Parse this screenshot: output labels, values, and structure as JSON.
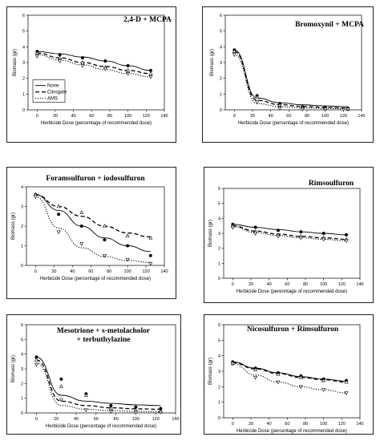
{
  "shared": {
    "xlabel": "Herbicide Dose (percentage of recommended dose)",
    "ylabel": "Biomass (gr)",
    "legend": [
      "None",
      "Citrogate",
      "AMS"
    ]
  },
  "chart_data": [
    {
      "type": "scatter",
      "title": "2,4-D + MCPA",
      "xlabel": "Herbicide Dose (percentage of recommended dose)",
      "ylabel": "Biomass (gr)",
      "xlim": [
        -10,
        140
      ],
      "ylim": [
        0,
        6
      ],
      "xticks": [
        0,
        20,
        40,
        60,
        80,
        100,
        120,
        140
      ],
      "yticks": [
        0,
        1,
        2,
        3,
        4,
        5,
        6
      ],
      "legend": [
        "None",
        "Citrogate",
        "AMS"
      ],
      "series": [
        {
          "name": "None",
          "x": [
            0,
            25,
            50,
            75,
            100,
            125
          ],
          "y": [
            3.7,
            3.5,
            3.3,
            3.1,
            2.8,
            2.5
          ],
          "curve": [
            3.7,
            3.55,
            3.35,
            3.1,
            2.8,
            2.5
          ]
        },
        {
          "name": "Citrogate",
          "x": [
            0,
            25,
            50,
            75,
            100,
            125
          ],
          "y": [
            3.6,
            3.3,
            3.0,
            2.7,
            2.5,
            2.3
          ],
          "curve": [
            3.6,
            3.3,
            3.0,
            2.75,
            2.5,
            2.3
          ]
        },
        {
          "name": "AMS",
          "x": [
            0,
            25,
            50,
            75,
            100,
            125
          ],
          "y": [
            3.4,
            3.1,
            2.8,
            2.6,
            2.3,
            2.1
          ],
          "curve": [
            3.5,
            3.15,
            2.85,
            2.55,
            2.3,
            2.1
          ]
        }
      ]
    },
    {
      "type": "scatter",
      "title": "Bromoxynil + MCPA",
      "xlabel": "Herbicide Dose (percentage of recommended dose)",
      "ylabel": "Biomass (gr)",
      "xlim": [
        -10,
        140
      ],
      "ylim": [
        0,
        6
      ],
      "xticks": [
        0,
        20,
        40,
        60,
        80,
        100,
        120,
        140
      ],
      "yticks": [
        0,
        1,
        2,
        3,
        4,
        5,
        6
      ],
      "series": [
        {
          "name": "None",
          "x": [
            0,
            25,
            50,
            75,
            100,
            125
          ],
          "y": [
            3.8,
            0.9,
            0.4,
            0.2,
            0.15,
            0.1
          ],
          "curve": [
            3.8,
            0.75,
            0.45,
            0.32,
            0.25,
            0.2
          ]
        },
        {
          "name": "Citrogate",
          "x": [
            0,
            25,
            50,
            75,
            100,
            125
          ],
          "y": [
            3.7,
            0.8,
            0.3,
            0.15,
            0.1,
            0.05
          ],
          "curve": [
            3.7,
            0.6,
            0.33,
            0.22,
            0.16,
            0.12
          ]
        },
        {
          "name": "AMS",
          "x": [
            0,
            25,
            50,
            75,
            100,
            125
          ],
          "y": [
            3.5,
            0.5,
            0.1,
            0.05,
            0.05,
            0.05
          ],
          "curve": [
            3.5,
            0.4,
            0.2,
            0.13,
            0.09,
            0.07
          ]
        }
      ]
    },
    {
      "type": "scatter",
      "title": "Foramsulfuron + iodosulfuron",
      "xlabel": "Herbicide Dose (percentage of recommended dose)",
      "ylabel": "Biomass (gr)",
      "xlim": [
        -10,
        140
      ],
      "ylim": [
        0,
        4
      ],
      "xticks": [
        0,
        20,
        40,
        60,
        80,
        100,
        120,
        140
      ],
      "yticks": [
        0,
        1,
        2,
        3,
        4
      ],
      "series": [
        {
          "name": "None",
          "x": [
            0,
            25,
            50,
            75,
            100,
            125
          ],
          "y": [
            3.6,
            2.6,
            2.0,
            1.3,
            1.0,
            0.5
          ],
          "curve": [
            3.6,
            2.8,
            2.0,
            1.4,
            1.0,
            0.7
          ]
        },
        {
          "name": "Citrogate",
          "x": [
            0,
            25,
            50,
            75,
            100,
            125
          ],
          "y": [
            3.6,
            3.0,
            2.7,
            2.0,
            1.5,
            1.4
          ],
          "curve": [
            3.6,
            3.0,
            2.5,
            2.0,
            1.65,
            1.45
          ]
        },
        {
          "name": "AMS",
          "x": [
            0,
            25,
            50,
            75,
            100,
            125
          ],
          "y": [
            3.5,
            1.7,
            1.1,
            0.5,
            0.3,
            0.1
          ],
          "curve": [
            3.5,
            1.9,
            0.9,
            0.45,
            0.25,
            0.15
          ]
        }
      ]
    },
    {
      "type": "scatter",
      "title": "Rimsoulfuron",
      "xlabel": "Herbicide Dose (perenntage of recommended dose)",
      "ylabel": "Biomass (gr)",
      "xlim": [
        -10,
        140
      ],
      "ylim": [
        0,
        6
      ],
      "xticks": [
        0,
        20,
        40,
        60,
        80,
        100,
        120,
        140
      ],
      "yticks": [
        0,
        1,
        2,
        3,
        4,
        5,
        6
      ],
      "series": [
        {
          "name": "None",
          "x": [
            0,
            25,
            50,
            75,
            100,
            125
          ],
          "y": [
            3.6,
            3.4,
            3.2,
            3.1,
            3.0,
            2.9
          ],
          "curve": [
            3.6,
            3.4,
            3.25,
            3.1,
            3.0,
            2.9
          ]
        },
        {
          "name": "Citrogate",
          "x": [
            0,
            25,
            50,
            75,
            100,
            125
          ],
          "y": [
            3.5,
            3.1,
            2.9,
            2.8,
            2.7,
            2.6
          ],
          "curve": [
            3.5,
            3.15,
            2.95,
            2.8,
            2.7,
            2.6
          ]
        },
        {
          "name": "AMS",
          "x": [
            0,
            25,
            50,
            75,
            100,
            125
          ],
          "y": [
            3.4,
            3.0,
            2.8,
            2.7,
            2.6,
            2.5
          ],
          "curve": [
            3.45,
            3.05,
            2.85,
            2.7,
            2.6,
            2.5
          ]
        }
      ]
    },
    {
      "type": "scatter",
      "title": "Mesotrione + s-metolacholor + terbuthylazine",
      "title_lines": [
        "Mesotrione + s-metolacholor",
        "+ terbuthylazine"
      ],
      "xlabel": "Herbicide Dose (percentage of recommended dose)",
      "ylabel": "Biomass (gr)",
      "xlim": [
        -10,
        140
      ],
      "ylim": [
        0,
        6
      ],
      "xticks": [
        0,
        20,
        40,
        60,
        80,
        100,
        120,
        140
      ],
      "yticks": [
        0,
        1,
        2,
        3,
        4,
        5,
        6
      ],
      "series": [
        {
          "name": "None",
          "x": [
            0,
            25,
            50,
            75,
            100,
            125
          ],
          "y": [
            3.8,
            2.3,
            1.3,
            0.5,
            0.4,
            0.3
          ],
          "curve": [
            3.8,
            1.2,
            0.8,
            0.65,
            0.55,
            0.5
          ]
        },
        {
          "name": "Citrogate",
          "x": [
            0,
            25,
            50,
            75,
            100,
            125
          ],
          "y": [
            3.6,
            1.8,
            1.2,
            0.3,
            0.2,
            0.1
          ],
          "curve": [
            3.6,
            0.8,
            0.5,
            0.35,
            0.28,
            0.25
          ]
        },
        {
          "name": "AMS",
          "x": [
            0,
            25,
            50,
            75,
            100,
            125
          ],
          "y": [
            3.3,
            0.9,
            0.2,
            0.1,
            0.05,
            0.05
          ],
          "curve": [
            3.4,
            0.5,
            0.25,
            0.15,
            0.1,
            0.08
          ]
        }
      ]
    },
    {
      "type": "scatter",
      "title": "Nicosulfuron + Rimsulfuron",
      "xlabel": "Herbicide Dose (percentage of recommended dose)",
      "ylabel": "Biomass (gr)",
      "xlim": [
        -10,
        140
      ],
      "ylim": [
        0,
        6
      ],
      "xticks": [
        0,
        20,
        40,
        60,
        80,
        100,
        120,
        140
      ],
      "yticks": [
        0,
        1,
        2,
        3,
        4,
        5,
        6
      ],
      "series": [
        {
          "name": "None",
          "x": [
            0,
            25,
            50,
            75,
            100,
            125
          ],
          "y": [
            3.6,
            3.2,
            2.9,
            2.7,
            2.5,
            2.4
          ],
          "curve": [
            3.6,
            3.2,
            2.9,
            2.65,
            2.5,
            2.35
          ]
        },
        {
          "name": "Citrogate",
          "x": [
            0,
            25,
            50,
            75,
            100,
            125
          ],
          "y": [
            3.5,
            3.1,
            2.8,
            2.6,
            2.4,
            2.3
          ],
          "curve": [
            3.55,
            3.15,
            2.85,
            2.6,
            2.45,
            2.3
          ]
        },
        {
          "name": "AMS",
          "x": [
            0,
            25,
            50,
            75,
            100,
            125
          ],
          "y": [
            3.5,
            2.6,
            2.3,
            2.0,
            1.8,
            1.6
          ],
          "curve": [
            3.5,
            2.75,
            2.3,
            2.0,
            1.8,
            1.6
          ]
        }
      ]
    }
  ]
}
